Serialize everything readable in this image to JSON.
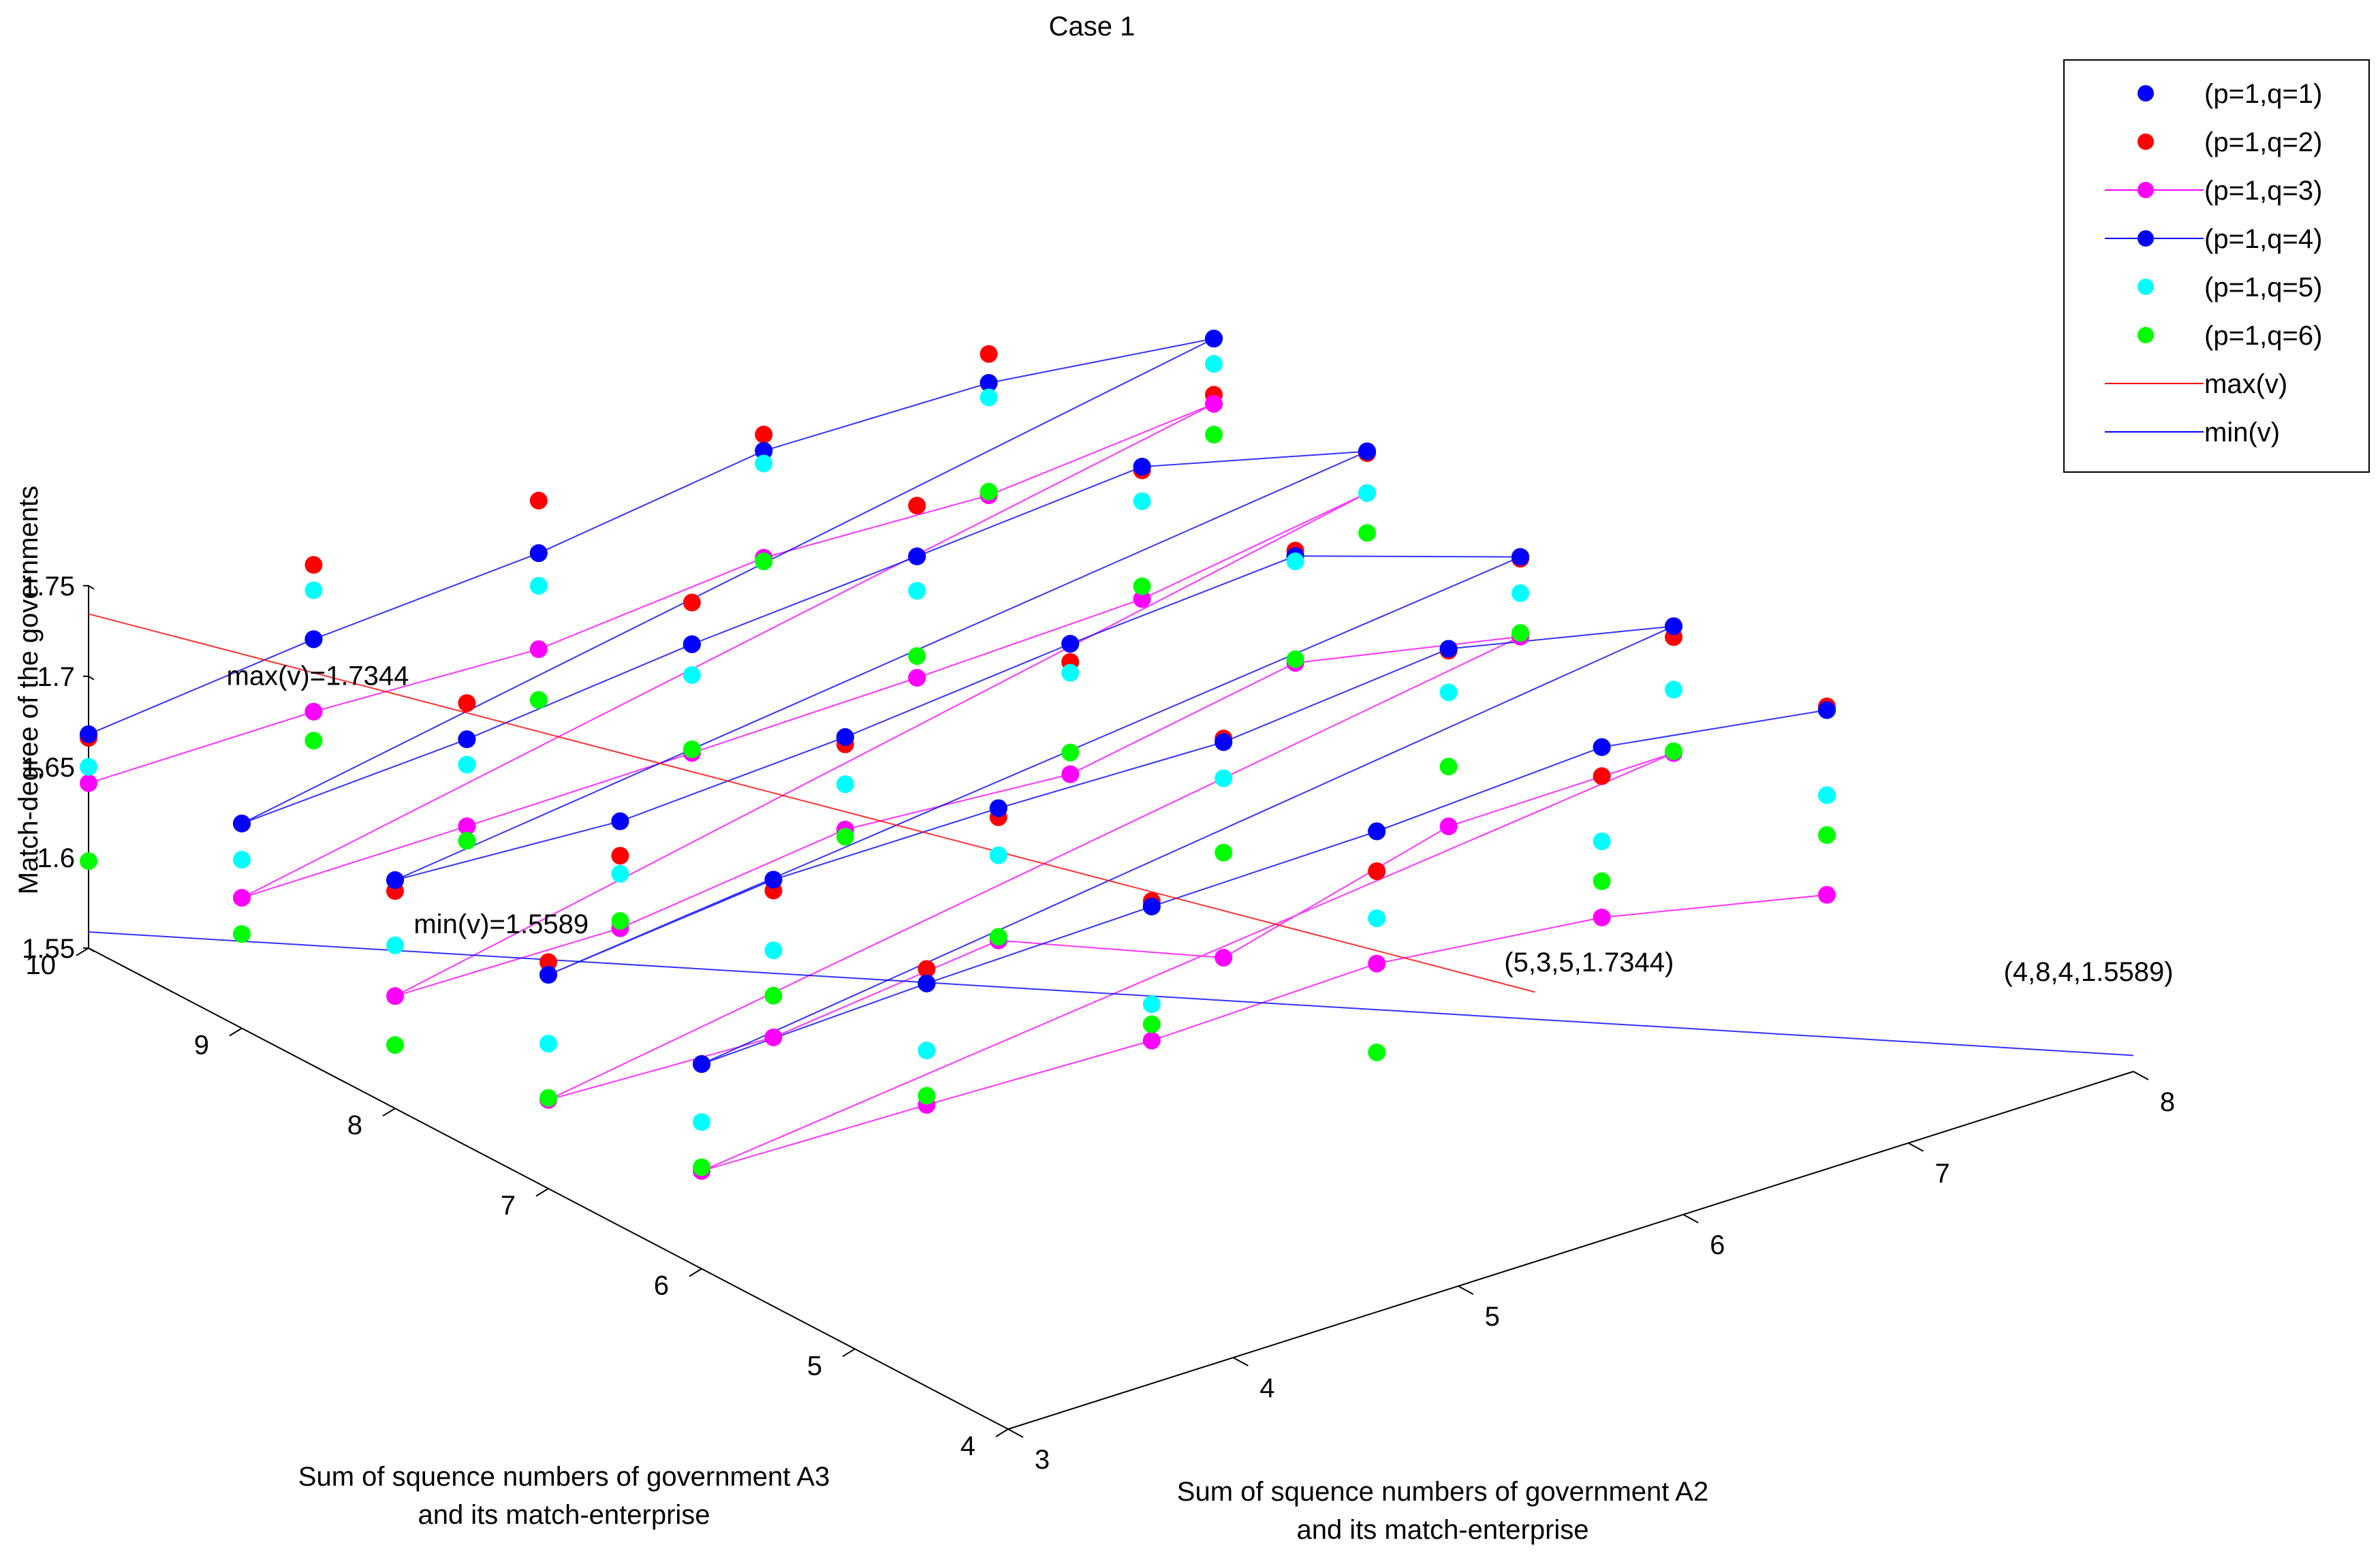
{
  "chart_data": {
    "type": "scatter",
    "projection": "3d",
    "title": "Case 1",
    "xlabel": [
      "Sum of squence numbers of government A2",
      "and its match-enterprise"
    ],
    "ylabel": [
      "Sum of squence numbers of government A3",
      "and its match-enterprise"
    ],
    "zlabel": "Match-degree of the governments",
    "xlim": [
      3,
      8
    ],
    "ylim": [
      4,
      10
    ],
    "zlim": [
      1.55,
      1.75
    ],
    "x_ticks": [
      "3",
      "4",
      "5",
      "6",
      "7",
      "8"
    ],
    "y_ticks": [
      "4",
      "5",
      "6",
      "7",
      "8",
      "9",
      "10"
    ],
    "z_ticks": [
      "1.55",
      "1.6",
      "1.65",
      "1.7",
      "1.75"
    ],
    "colors": {
      "q1": "#0000ff",
      "q2": "#ff0000",
      "q3": "#ff00ff",
      "q4": "#0000ff",
      "q5": "#00ffff",
      "q6": "#00ff00",
      "max": "#ff0000",
      "min": "#0000ff"
    },
    "series": [
      {
        "name": "(p=1,q=1)",
        "color_key": "q1",
        "line": false,
        "points": [
          [
            3,
            10,
            1.668
          ],
          [
            4,
            10,
            1.681
          ],
          [
            5,
            10,
            1.689
          ],
          [
            6,
            10,
            1.706
          ],
          [
            7,
            10,
            1.704
          ],
          [
            8,
            10,
            1.689
          ],
          [
            3,
            9,
            1.663
          ],
          [
            4,
            9,
            1.67
          ],
          [
            5,
            9,
            1.683
          ],
          [
            6,
            9,
            1.692
          ],
          [
            7,
            9,
            1.702
          ],
          [
            8,
            9,
            1.671
          ],
          [
            3,
            8,
            1.676
          ],
          [
            4,
            8,
            1.669
          ],
          [
            5,
            8,
            1.676
          ],
          [
            6,
            8,
            1.688
          ],
          [
            7,
            8,
            1.697
          ],
          [
            8,
            8,
            1.657
          ],
          [
            3,
            7,
            1.668
          ],
          [
            4,
            7,
            1.681
          ],
          [
            5,
            7,
            1.681
          ],
          [
            6,
            7,
            1.678
          ],
          [
            7,
            7,
            1.69
          ],
          [
            8,
            7,
            1.663
          ],
          [
            3,
            6,
            1.663
          ],
          [
            4,
            6,
            1.668
          ],
          [
            5,
            6,
            1.671
          ],
          [
            6,
            6,
            1.673
          ],
          [
            7,
            6,
            1.68
          ],
          [
            8,
            6,
            1.661
          ]
        ]
      },
      {
        "name": "(p=1,q=2)",
        "color_key": "q2",
        "line": false,
        "points": [
          [
            3,
            10,
            1.666
          ],
          [
            4,
            10,
            1.722
          ],
          [
            5,
            10,
            1.718
          ],
          [
            6,
            10,
            1.715
          ],
          [
            7,
            10,
            1.72
          ],
          [
            8,
            10,
            1.658
          ],
          [
            3,
            9,
            1.663
          ],
          [
            4,
            9,
            1.69
          ],
          [
            5,
            9,
            1.706
          ],
          [
            6,
            9,
            1.72
          ],
          [
            7,
            9,
            1.7
          ],
          [
            8,
            9,
            1.67
          ],
          [
            3,
            8,
            1.67
          ],
          [
            4,
            8,
            1.65
          ],
          [
            5,
            8,
            1.672
          ],
          [
            6,
            8,
            1.678
          ],
          [
            7,
            8,
            1.7
          ],
          [
            8,
            8,
            1.656
          ],
          [
            3,
            7,
            1.675
          ],
          [
            4,
            7,
            1.675
          ],
          [
            5,
            7,
            1.676
          ],
          [
            6,
            7,
            1.68
          ],
          [
            7,
            7,
            1.689
          ],
          [
            8,
            7,
            1.657
          ],
          [
            3,
            6,
            1.663
          ],
          [
            4,
            6,
            1.676
          ],
          [
            5,
            6,
            1.674
          ],
          [
            6,
            6,
            1.651
          ],
          [
            7,
            6,
            1.664
          ],
          [
            8,
            6,
            1.663
          ]
        ]
      },
      {
        "name": "(p=1,q=3)",
        "color_key": "q3",
        "line": true,
        "points": [
          [
            3,
            10,
            1.641
          ],
          [
            4,
            10,
            1.641
          ],
          [
            5,
            10,
            1.636
          ],
          [
            6,
            10,
            1.647
          ],
          [
            7,
            10,
            1.642
          ],
          [
            8,
            10,
            1.653
          ],
          [
            3,
            9,
            1.622
          ],
          [
            4,
            9,
            1.622
          ],
          [
            5,
            9,
            1.623
          ],
          [
            6,
            9,
            1.625
          ],
          [
            7,
            9,
            1.629
          ],
          [
            8,
            9,
            1.648
          ],
          [
            3,
            8,
            1.612
          ],
          [
            4,
            8,
            1.61
          ],
          [
            5,
            8,
            1.625
          ],
          [
            6,
            8,
            1.616
          ],
          [
            7,
            8,
            1.638
          ],
          [
            8,
            8,
            1.613
          ],
          [
            3,
            7,
            1.599
          ],
          [
            4,
            7,
            1.594
          ],
          [
            5,
            7,
            1.608
          ],
          [
            6,
            7,
            1.559
          ],
          [
            7,
            7,
            1.592
          ],
          [
            8,
            7,
            1.593
          ],
          [
            3,
            6,
            1.604
          ],
          [
            4,
            6,
            1.601
          ],
          [
            5,
            6,
            1.597
          ],
          [
            6,
            6,
            1.6
          ],
          [
            7,
            6,
            1.586
          ],
          [
            8,
            6,
            1.559
          ]
        ]
      },
      {
        "name": "(p=1,q=4)",
        "color_key": "q4",
        "line": true,
        "points": [
          [
            3,
            10,
            1.668
          ],
          [
            4,
            10,
            1.681
          ],
          [
            5,
            10,
            1.689
          ],
          [
            6,
            10,
            1.706
          ],
          [
            7,
            10,
            1.704
          ],
          [
            8,
            10,
            1.689
          ],
          [
            3,
            9,
            1.663
          ],
          [
            4,
            9,
            1.67
          ],
          [
            5,
            9,
            1.683
          ],
          [
            6,
            9,
            1.692
          ],
          [
            7,
            9,
            1.702
          ],
          [
            8,
            9,
            1.671
          ],
          [
            3,
            8,
            1.676
          ],
          [
            4,
            8,
            1.669
          ],
          [
            5,
            8,
            1.676
          ],
          [
            6,
            8,
            1.688
          ],
          [
            7,
            8,
            1.697
          ],
          [
            8,
            8,
            1.657
          ],
          [
            3,
            7,
            1.668
          ],
          [
            4,
            7,
            1.681
          ],
          [
            5,
            7,
            1.681
          ],
          [
            6,
            7,
            1.678
          ],
          [
            7,
            7,
            1.69
          ],
          [
            8,
            7,
            1.663
          ],
          [
            3,
            6,
            1.663
          ],
          [
            4,
            6,
            1.668
          ],
          [
            5,
            6,
            1.671
          ],
          [
            6,
            6,
            1.673
          ],
          [
            7,
            6,
            1.68
          ],
          [
            8,
            6,
            1.661
          ]
        ]
      },
      {
        "name": "(p=1,q=5)",
        "color_key": "q5",
        "line": false,
        "points": [
          [
            3,
            10,
            1.65
          ],
          [
            4,
            10,
            1.708
          ],
          [
            5,
            10,
            1.671
          ],
          [
            6,
            10,
            1.699
          ],
          [
            7,
            10,
            1.696
          ],
          [
            8,
            10,
            1.675
          ],
          [
            3,
            9,
            1.643
          ],
          [
            4,
            9,
            1.656
          ],
          [
            5,
            9,
            1.666
          ],
          [
            6,
            9,
            1.673
          ],
          [
            7,
            9,
            1.683
          ],
          [
            8,
            9,
            1.648
          ],
          [
            3,
            8,
            1.64
          ],
          [
            4,
            8,
            1.64
          ],
          [
            5,
            8,
            1.65
          ],
          [
            6,
            8,
            1.672
          ],
          [
            7,
            8,
            1.694
          ],
          [
            8,
            8,
            1.637
          ],
          [
            3,
            7,
            1.63
          ],
          [
            4,
            7,
            1.642
          ],
          [
            5,
            7,
            1.655
          ],
          [
            6,
            7,
            1.658
          ],
          [
            7,
            7,
            1.666
          ],
          [
            8,
            7,
            1.628
          ],
          [
            3,
            6,
            1.631
          ],
          [
            4,
            6,
            1.631
          ],
          [
            5,
            6,
            1.617
          ],
          [
            6,
            6,
            1.625
          ],
          [
            7,
            6,
            1.628
          ],
          [
            8,
            6,
            1.614
          ]
        ]
      },
      {
        "name": "(p=1,q=6)",
        "color_key": "q6",
        "line": false,
        "points": [
          [
            3,
            10,
            1.598
          ],
          [
            4,
            10,
            1.625
          ],
          [
            5,
            10,
            1.608
          ],
          [
            6,
            10,
            1.645
          ],
          [
            7,
            10,
            1.644
          ],
          [
            8,
            10,
            1.636
          ],
          [
            3,
            9,
            1.602
          ],
          [
            4,
            9,
            1.614
          ],
          [
            5,
            9,
            1.625
          ],
          [
            6,
            9,
            1.637
          ],
          [
            7,
            9,
            1.636
          ],
          [
            8,
            9,
            1.626
          ],
          [
            3,
            8,
            1.585
          ],
          [
            4,
            8,
            1.614
          ],
          [
            5,
            8,
            1.621
          ],
          [
            6,
            8,
            1.628
          ],
          [
            7,
            8,
            1.64
          ],
          [
            8,
            8,
            1.615
          ],
          [
            3,
            7,
            1.6
          ],
          [
            4,
            7,
            1.617
          ],
          [
            5,
            7,
            1.61
          ],
          [
            6,
            7,
            1.617
          ],
          [
            7,
            7,
            1.625
          ],
          [
            8,
            7,
            1.594
          ],
          [
            3,
            6,
            1.606
          ],
          [
            4,
            6,
            1.606
          ],
          [
            5,
            6,
            1.606
          ],
          [
            6,
            6,
            1.551
          ],
          [
            7,
            6,
            1.606
          ],
          [
            8,
            6,
            1.592
          ]
        ]
      },
      {
        "name": "max(v)",
        "color_key": "max",
        "line": true,
        "marker": false,
        "points": [
          [
            3,
            10,
            1.7344
          ],
          [
            5,
            3.5,
            1.7344
          ]
        ]
      },
      {
        "name": "min(v)",
        "color_key": "min",
        "line": true,
        "marker": false,
        "points": [
          [
            3,
            10,
            1.5589
          ],
          [
            8,
            4,
            1.5589
          ]
        ]
      }
    ],
    "annotations": [
      {
        "text": "max(v)=1.7344",
        "at": [
          3,
          9.1,
          1.735
        ]
      },
      {
        "text": "(5,3,5,1.7344)",
        "at": [
          5,
          3.7,
          1.737
        ]
      },
      {
        "text": "min(v)=1.5589",
        "at": [
          3.9,
          9.2,
          1.558
        ]
      },
      {
        "text": "(4,8,4,1.5589)",
        "at": [
          7.9,
          4.7,
          1.573
        ]
      }
    ],
    "legend": {
      "position": "top-right",
      "entries": [
        "(p=1,q=1)",
        "(p=1,q=2)",
        "(p=1,q=3)",
        "(p=1,q=4)",
        "(p=1,q=5)",
        "(p=1,q=6)",
        "max(v)",
        "min(v)"
      ]
    }
  }
}
